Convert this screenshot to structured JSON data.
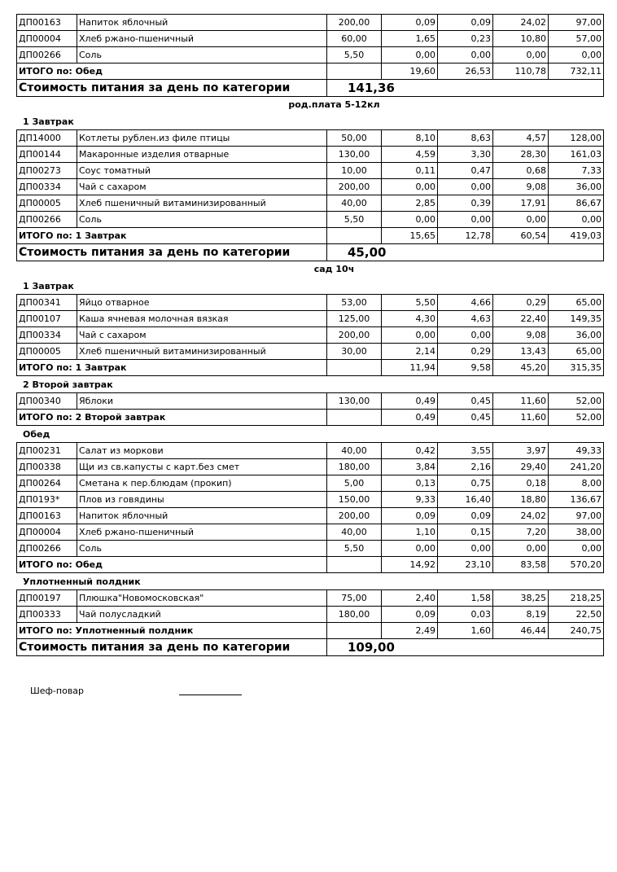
{
  "blocks": [
    {
      "category": "",
      "sections": [
        {
          "title": "",
          "rows": [
            [
              "ДП00163",
              "Напиток яблочный",
              "200,00",
              "0,09",
              "0,09",
              "24,02",
              "97,00"
            ],
            [
              "ДП00004",
              "Хлеб ржано-пшеничный",
              "60,00",
              "1,65",
              "0,23",
              "10,80",
              "57,00"
            ],
            [
              "ДП00266",
              "Соль",
              "5,50",
              "0,00",
              "0,00",
              "0,00",
              "0,00"
            ]
          ],
          "total": {
            "label": "ИТОГО по: Обед",
            "values": [
              "19,60",
              "26,53",
              "110,78",
              "732,11"
            ]
          }
        }
      ],
      "cost": {
        "label": "Стоимость питания за день по категории",
        "value": "141,36"
      }
    },
    {
      "category": "род.плата 5-12кл",
      "sections": [
        {
          "title": "1 Завтрак",
          "rows": [
            [
              "ДП14000",
              "Котлеты рублен.из филе птицы",
              "50,00",
              "8,10",
              "8,63",
              "4,57",
              "128,00"
            ],
            [
              "ДП00144",
              "Макаронные изделия отварные",
              "130,00",
              "4,59",
              "3,30",
              "28,30",
              "161,03"
            ],
            [
              "ДП00273",
              "Соус томатный",
              "10,00",
              "0,11",
              "0,47",
              "0,68",
              "7,33"
            ],
            [
              "ДП00334",
              "Чай с сахаром",
              "200,00",
              "0,00",
              "0,00",
              "9,08",
              "36,00"
            ],
            [
              "ДП00005",
              "Хлеб пшеничный витаминизированный",
              "40,00",
              "2,85",
              "0,39",
              "17,91",
              "86,67"
            ],
            [
              "ДП00266",
              "Соль",
              "5,50",
              "0,00",
              "0,00",
              "0,00",
              "0,00"
            ]
          ],
          "total": {
            "label": "ИТОГО по: 1 Завтрак",
            "values": [
              "15,65",
              "12,78",
              "60,54",
              "419,03"
            ]
          }
        }
      ],
      "cost": {
        "label": "Стоимость питания за день по категории",
        "value": "45,00"
      }
    },
    {
      "category": "сад 10ч",
      "sections": [
        {
          "title": "1 Завтрак",
          "rows": [
            [
              "ДП00341",
              "Яйцо отварное",
              "53,00",
              "5,50",
              "4,66",
              "0,29",
              "65,00"
            ],
            [
              "ДП00107",
              "Каша ячневая молочная вязкая",
              "125,00",
              "4,30",
              "4,63",
              "22,40",
              "149,35"
            ],
            [
              "ДП00334",
              "Чай с сахаром",
              "200,00",
              "0,00",
              "0,00",
              "9,08",
              "36,00"
            ],
            [
              "ДП00005",
              "Хлеб пшеничный витаминизированный",
              "30,00",
              "2,14",
              "0,29",
              "13,43",
              "65,00"
            ]
          ],
          "total": {
            "label": "ИТОГО по: 1 Завтрак",
            "values": [
              "11,94",
              "9,58",
              "45,20",
              "315,35"
            ]
          }
        },
        {
          "title": "2 Второй завтрак",
          "rows": [
            [
              "ДП00340",
              "Яблоки",
              "130,00",
              "0,49",
              "0,45",
              "11,60",
              "52,00"
            ]
          ],
          "total": {
            "label": "ИТОГО по: 2 Второй завтрак",
            "values": [
              "0,49",
              "0,45",
              "11,60",
              "52,00"
            ]
          }
        },
        {
          "title": "Обед",
          "rows": [
            [
              "ДП00231",
              "Салат из моркови",
              "40,00",
              "0,42",
              "3,55",
              "3,97",
              "49,33"
            ],
            [
              "ДП00338",
              "Щи из св.капусты с карт.без смет",
              "180,00",
              "3,84",
              "2,16",
              "29,40",
              "241,20"
            ],
            [
              "ДП00264",
              "Сметана к пер.блюдам (прокип)",
              "5,00",
              "0,13",
              "0,75",
              "0,18",
              "8,00"
            ],
            [
              "ДП0193*",
              "Плов из говядины",
              "150,00",
              "9,33",
              "16,40",
              "18,80",
              "136,67"
            ],
            [
              "ДП00163",
              "Напиток яблочный",
              "200,00",
              "0,09",
              "0,09",
              "24,02",
              "97,00"
            ],
            [
              "ДП00004",
              "Хлеб ржано-пшеничный",
              "40,00",
              "1,10",
              "0,15",
              "7,20",
              "38,00"
            ],
            [
              "ДП00266",
              "Соль",
              "5,50",
              "0,00",
              "0,00",
              "0,00",
              "0,00"
            ]
          ],
          "total": {
            "label": "ИТОГО по: Обед",
            "values": [
              "14,92",
              "23,10",
              "83,58",
              "570,20"
            ]
          }
        },
        {
          "title": "Уплотненный полдник",
          "rows": [
            [
              "ДП00197",
              "Плюшка\"Новомосковская\"",
              "75,00",
              "2,40",
              "1,58",
              "38,25",
              "218,25"
            ],
            [
              "ДП00333",
              "Чай полусладкий",
              "180,00",
              "0,09",
              "0,03",
              "8,19",
              "22,50"
            ]
          ],
          "total": {
            "label": "ИТОГО по: Уплотненный полдник",
            "values": [
              "2,49",
              "1,60",
              "46,44",
              "240,75"
            ]
          }
        }
      ],
      "cost": {
        "label": "Стоимость питания за день по категории",
        "value": "109,00"
      }
    }
  ],
  "signature": {
    "label": "Шеф-повар"
  }
}
